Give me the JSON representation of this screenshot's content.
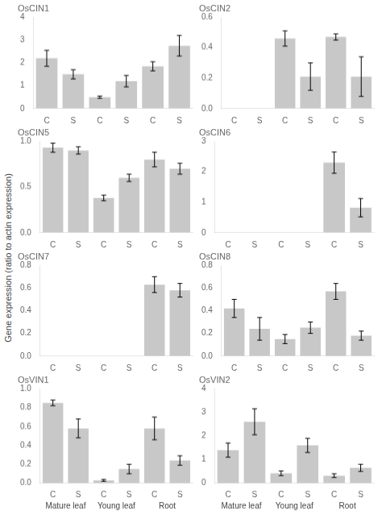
{
  "chart_data": [
    {
      "type": "bar",
      "title": "OsCIN1",
      "categories": [
        "C",
        "S",
        "C",
        "S",
        "C",
        "S"
      ],
      "values": [
        2.2,
        1.5,
        0.5,
        1.2,
        1.85,
        2.75
      ],
      "errors": [
        0.35,
        0.2,
        0.05,
        0.25,
        0.2,
        0.45
      ],
      "color": "#c8c8c8",
      "ylim": [
        0,
        4
      ],
      "yticks": [
        0,
        1,
        2,
        3,
        4
      ],
      "grid": false
    },
    {
      "type": "bar",
      "title": "OsCIN2",
      "categories": [
        "C",
        "S",
        "C",
        "S",
        "C",
        "S"
      ],
      "values": [
        0.0,
        0.0,
        0.46,
        0.21,
        0.47,
        0.21
      ],
      "errors": [
        0.0,
        0.0,
        0.05,
        0.09,
        0.02,
        0.13
      ],
      "color": "#c8c8c8",
      "ylim": [
        0,
        0.6
      ],
      "yticks": [
        {
          "value": 0,
          "label": "0.0"
        },
        0.2,
        0.4,
        0.6
      ],
      "grid": false
    },
    {
      "type": "bar",
      "title": "OsCIN5",
      "categories": [
        "C",
        "S",
        "C",
        "S",
        "C",
        "S"
      ],
      "values": [
        0.93,
        0.9,
        0.38,
        0.6,
        0.8,
        0.7
      ],
      "errors": [
        0.05,
        0.04,
        0.03,
        0.04,
        0.08,
        0.06
      ],
      "color": "#c8c8c8",
      "ylim": [
        0,
        1.0
      ],
      "yticks": [
        {
          "value": 0,
          "label": "0.0"
        },
        0.5,
        {
          "value": 1,
          "label": "1.0"
        }
      ],
      "grid": false
    },
    {
      "type": "bar",
      "title": "OsCIN6",
      "categories": [
        "C",
        "S",
        "C",
        "S",
        "C",
        "S"
      ],
      "values": [
        0.0,
        0.0,
        0.0,
        0.0,
        2.3,
        0.82
      ],
      "errors": [
        0.0,
        0.0,
        0.0,
        0.0,
        0.35,
        0.3
      ],
      "color": "#c8c8c8",
      "ylim": [
        0,
        3
      ],
      "yticks": [
        0,
        1,
        2,
        3
      ],
      "grid": false
    },
    {
      "type": "bar",
      "title": "OsCIN7",
      "categories": [
        "C",
        "S",
        "C",
        "S",
        "C",
        "S"
      ],
      "values": [
        0.0,
        0.0,
        0.0,
        0.0,
        0.63,
        0.58
      ],
      "errors": [
        0.0,
        0.0,
        0.0,
        0.0,
        0.07,
        0.06
      ],
      "color": "#c8c8c8",
      "ylim": [
        0,
        0.8
      ],
      "yticks": [
        {
          "value": 0,
          "label": "0.0"
        },
        0.2,
        0.4,
        0.6,
        0.8
      ],
      "grid": false
    },
    {
      "type": "bar",
      "title": "OsCIN8",
      "categories": [
        "C",
        "S",
        "C",
        "S",
        "C",
        "S"
      ],
      "values": [
        0.42,
        0.24,
        0.15,
        0.25,
        0.57,
        0.18
      ],
      "errors": [
        0.08,
        0.1,
        0.04,
        0.05,
        0.07,
        0.04
      ],
      "color": "#c8c8c8",
      "ylim": [
        0,
        0.8
      ],
      "yticks": [
        {
          "value": 0,
          "label": "0.0"
        },
        0.2,
        0.4,
        0.6,
        0.8
      ],
      "grid": false
    },
    {
      "type": "bar",
      "title": "OsVIN1",
      "categories": [
        "C",
        "S",
        "C",
        "S",
        "C",
        "S"
      ],
      "values": [
        0.85,
        0.58,
        0.03,
        0.15,
        0.58,
        0.24
      ],
      "errors": [
        0.03,
        0.1,
        0.01,
        0.05,
        0.12,
        0.05
      ],
      "color": "#c8c8c8",
      "ylim": [
        0,
        1.0
      ],
      "yticks": [
        {
          "value": 0,
          "label": "0.0"
        },
        0.2,
        0.4,
        0.6,
        0.8,
        {
          "value": 1,
          "label": "1.0"
        }
      ],
      "grid": false,
      "annotations": [
        "Mature leaf",
        "Young leaf",
        "Root"
      ]
    },
    {
      "type": "bar",
      "title": "OsVIN2",
      "categories": [
        "C",
        "S",
        "C",
        "S",
        "C",
        "S"
      ],
      "values": [
        1.4,
        2.6,
        0.42,
        1.6,
        0.32,
        0.65
      ],
      "errors": [
        0.3,
        0.55,
        0.1,
        0.3,
        0.08,
        0.15
      ],
      "color": "#c8c8c8",
      "ylim": [
        0,
        4
      ],
      "yticks": [
        0,
        1,
        2,
        3,
        4
      ],
      "grid": false,
      "annotations": [
        "Mature leaf",
        "Young leaf",
        "Root"
      ]
    }
  ],
  "ylabel": "Gene expression (ratio to actin expression)"
}
